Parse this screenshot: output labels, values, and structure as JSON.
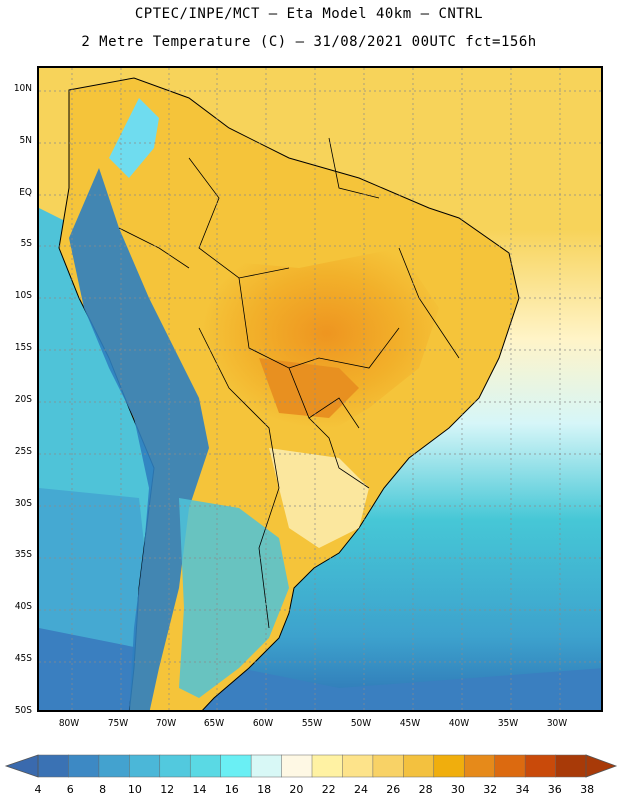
{
  "header": {
    "line1": "CPTEC/INPE/MCT –  Eta Model 40km – CNTRL",
    "line2": "2 Metre Temperature (C) – 31/08/2021 00UTC fct=156h"
  },
  "map": {
    "latitude_labels": [
      "10N",
      "5N",
      "EQ",
      "5S",
      "10S",
      "15S",
      "20S",
      "25S",
      "30S",
      "35S",
      "40S",
      "45S",
      "50S"
    ],
    "longitude_labels": [
      "80W",
      "75W",
      "70W",
      "65W",
      "60W",
      "55W",
      "50W",
      "45W",
      "40W",
      "35W",
      "30W"
    ],
    "colors": {
      "land_hot": "#f0a81c",
      "land_warm": "#f5c43a",
      "ocean_cool": "#46c7d6",
      "andes_cold": "#2f7fc0",
      "coast_line": "#000000"
    }
  },
  "colorbar": {
    "labels": [
      "4",
      "6",
      "8",
      "10",
      "12",
      "14",
      "16",
      "18",
      "20",
      "22",
      "24",
      "26",
      "28",
      "30",
      "32",
      "34",
      "36",
      "38"
    ],
    "colors": [
      "#3a72b4",
      "#3d89c4",
      "#43a2cf",
      "#4bb7d8",
      "#52c9de",
      "#5ad9e4",
      "#6aeff4",
      "#d8f8f6",
      "#fef8e4",
      "#fff2a3",
      "#fde38a",
      "#f8d266",
      "#f3c13f",
      "#f0ae0d",
      "#e68a1a",
      "#dc6a10",
      "#c94a0a",
      "#a83a08"
    ],
    "arrow_left_color": "#3a6aae",
    "arrow_right_color": "#a83a08"
  }
}
